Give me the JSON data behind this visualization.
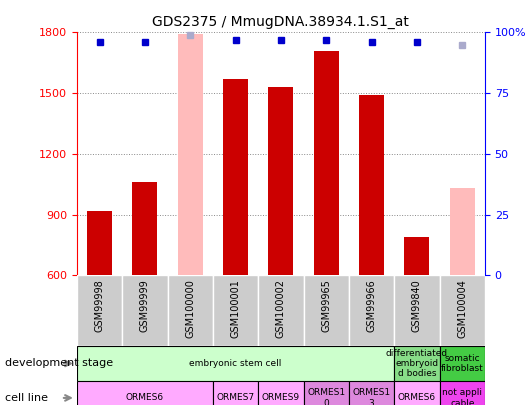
{
  "title": "GDS2375 / MmugDNA.38934.1.S1_at",
  "samples": [
    "GSM99998",
    "GSM99999",
    "GSM100000",
    "GSM100001",
    "GSM100002",
    "GSM99965",
    "GSM99966",
    "GSM99840",
    "GSM100004"
  ],
  "counts": [
    920,
    1060,
    null,
    1570,
    1530,
    1710,
    1490,
    790,
    null
  ],
  "absent_counts": [
    null,
    null,
    1790,
    null,
    null,
    null,
    null,
    null,
    1030
  ],
  "percentile_ranks": [
    96,
    96,
    null,
    97,
    97,
    97,
    96,
    96,
    null
  ],
  "absent_ranks": [
    null,
    null,
    99,
    null,
    null,
    null,
    null,
    null,
    95
  ],
  "ylim_left": [
    600,
    1800
  ],
  "ylim_right": [
    0,
    100
  ],
  "yticks_left": [
    600,
    900,
    1200,
    1500,
    1800
  ],
  "yticks_right": [
    0,
    25,
    50,
    75,
    100
  ],
  "bar_color": "#cc0000",
  "absent_bar_color": "#ffbbbb",
  "rank_color": "#0000cc",
  "absent_rank_color": "#aaaacc",
  "background_color": "#ffffff",
  "grid_color": "#888888",
  "dev_stage_light_green": "#ccffcc",
  "dev_stage_mid_green": "#88dd88",
  "dev_stage_dark_green": "#44cc44",
  "cell_light_pink": "#ffaaff",
  "cell_mid_pink": "#dd88dd",
  "cell_dark_pink": "#ee44ee",
  "dev_spans": [
    [
      0,
      6,
      "embryonic stem cell"
    ],
    [
      7,
      7,
      "differentiated\nembryoid\nd bodies"
    ],
    [
      8,
      8,
      "somatic\nfibroblast"
    ]
  ],
  "cell_spans": [
    [
      0,
      2,
      "ORMES6"
    ],
    [
      3,
      3,
      "ORMES7"
    ],
    [
      4,
      4,
      "ORMES9"
    ],
    [
      5,
      5,
      "ORMES1\n0"
    ],
    [
      6,
      6,
      "ORMES1\n3"
    ],
    [
      7,
      7,
      "ORMES6"
    ],
    [
      8,
      8,
      "not appli\ncable"
    ]
  ]
}
